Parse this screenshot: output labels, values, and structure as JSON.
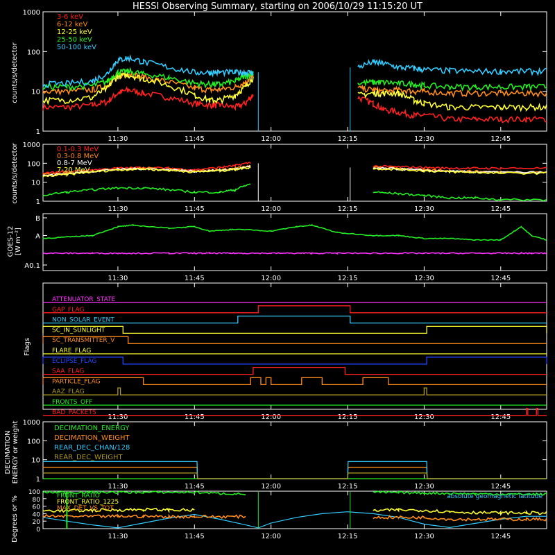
{
  "title": "HESSI Observing Summary, starting on 2006/10/29 11:15:20 UT",
  "colors": {
    "red": "#ff2020",
    "orange": "#ff8c1a",
    "yellow": "#ffff33",
    "green": "#22ee22",
    "cyan": "#33ccff",
    "magenta": "#ff33ff",
    "blue": "#2244ff",
    "olive": "#aa9922",
    "white": "#ffffff",
    "axis": "#ffffff"
  },
  "time_axis": {
    "ticks": [
      "11:30",
      "11:45",
      "12:00",
      "12:15",
      "12:30",
      "12:45"
    ],
    "tick_minutes": [
      690,
      705,
      720,
      735,
      750,
      765
    ],
    "range_minutes": [
      675.33,
      774
    ]
  },
  "panels": {
    "xray": {
      "ylabel": "counts/s/detector",
      "yticks": [
        "1",
        "10",
        "100",
        "1000"
      ],
      "legend": [
        "3-6 keV",
        "6-12 keV",
        "12-25 keV",
        "25-50 keV",
        "50-100 keV"
      ]
    },
    "gamma": {
      "ylabel": "counts/s/detector",
      "yticks": [
        "1",
        "10",
        "100",
        "1000"
      ],
      "legend": [
        "0.1-0.3 MeV",
        "0.3-0.8 MeV",
        "0.8-7 MeV",
        "7-20 MeV"
      ]
    },
    "goes": {
      "ylabel1": "GOES-12",
      "ylabel2": "[W m⁻²]",
      "yticks": [
        "B",
        "A",
        "A0.1"
      ]
    },
    "flags": {
      "ylabel": "Flags",
      "labels": [
        "ATTENUATOR_STATE",
        "GAP_FLAG",
        "NON_SOLAR_EVENT",
        "SC_IN_SUNLIGHT",
        "SC_TRANSMITTER_V",
        "FLARE_FLAG",
        "ECLIPSE_FLAG",
        "SAA_FLAG",
        "PARTICLE_FLAG",
        "AAZ_FLAG",
        "FRONTS_OFF",
        "BAD_PACKETS"
      ]
    },
    "decimation": {
      "ylabel1": "DECIMATION",
      "ylabel2": "ENERGY or weight",
      "yticks": [
        "1",
        "10",
        "100",
        "1000"
      ],
      "legend": [
        "DECIMATION_ENERGY",
        "DECIMATION_WEIGHT",
        "REAR_DEC_CHAN/128",
        "REAR_DEC_WEIGHT"
      ]
    },
    "ratio": {
      "ylabel": "Degrees or %",
      "yticks": [
        "0",
        "20",
        "40",
        "60",
        "80",
        "100"
      ],
      "legend": [
        "FRONT_RATIO",
        "FRONT_RATIO_1225",
        "MAX_DET_VS_TOT"
      ],
      "right_legend": "absolute geomagnetic latitude"
    }
  },
  "chart_data": [
    {
      "type": "line",
      "title": "HESSI Observing Summary, starting on 2006/10/29 11:15:20 UT",
      "ylabel": "counts/s/detector",
      "yscale": "log",
      "ylim": [
        1,
        1000
      ],
      "x": [
        675.3,
        680,
        685,
        688,
        690,
        692,
        695,
        700,
        705,
        708,
        710,
        713,
        715,
        716.5,
        717.5,
        735.5,
        737,
        740,
        742,
        745,
        748,
        750,
        755,
        760,
        765,
        770,
        774
      ],
      "series": [
        {
          "name": "3-6 keV",
          "color": "red",
          "values": [
            4,
            4,
            4.5,
            5.5,
            9,
            11,
            9,
            7,
            5,
            4.5,
            4.5,
            4,
            5,
            8,
            null,
            null,
            7,
            5,
            3.5,
            3,
            2.5,
            2.5,
            2,
            2,
            2,
            2,
            2
          ]
        },
        {
          "name": "6-12 keV",
          "color": "orange",
          "values": [
            10,
            10,
            11,
            14,
            25,
            28,
            23,
            17,
            12,
            11,
            11,
            13,
            17,
            25,
            null,
            null,
            12,
            11,
            10,
            11,
            10,
            10,
            9,
            9,
            9,
            9,
            9
          ]
        },
        {
          "name": "12-25 keV",
          "color": "yellow",
          "values": [
            6,
            6,
            7,
            12,
            24,
            26,
            21,
            14,
            8,
            6,
            6,
            8,
            13,
            22,
            null,
            null,
            8,
            9,
            9,
            9,
            6,
            5,
            4,
            4,
            4,
            4,
            4
          ]
        },
        {
          "name": "25-50 keV",
          "color": "green",
          "values": [
            13,
            13,
            14,
            18,
            30,
            32,
            28,
            22,
            16,
            15,
            15,
            18,
            24,
            30,
            null,
            null,
            16,
            17,
            17,
            16,
            15,
            14,
            13,
            13,
            13,
            13,
            13
          ]
        },
        {
          "name": "50-100 keV",
          "color": "cyan",
          "values": [
            15,
            16,
            18,
            28,
            60,
            70,
            55,
            40,
            30,
            30,
            30,
            30,
            30,
            30,
            null,
            null,
            40,
            55,
            50,
            40,
            38,
            35,
            33,
            32,
            32,
            32,
            32
          ]
        }
      ]
    },
    {
      "type": "line",
      "ylabel": "counts/s/detector",
      "yscale": "log",
      "ylim": [
        1,
        1000
      ],
      "x": [
        675.3,
        680,
        685,
        690,
        695,
        700,
        705,
        710,
        713,
        716,
        717.5,
        735.5,
        740,
        745,
        750,
        755,
        760,
        765,
        774
      ],
      "series": [
        {
          "name": "0.1-0.3 MeV",
          "color": "red",
          "values": [
            30,
            35,
            45,
            55,
            60,
            55,
            45,
            60,
            75,
            110,
            null,
            null,
            70,
            65,
            60,
            55,
            55,
            55,
            55
          ]
        },
        {
          "name": "0.3-0.8 MeV",
          "color": "orange",
          "values": [
            25,
            30,
            40,
            50,
            55,
            48,
            40,
            45,
            55,
            70,
            null,
            null,
            60,
            55,
            45,
            40,
            38,
            35,
            35
          ]
        },
        {
          "name": "0.8-7 MeV",
          "color": "white",
          "values": [
            22,
            28,
            38,
            48,
            52,
            45,
            38,
            42,
            50,
            65,
            null,
            null,
            55,
            50,
            42,
            37,
            35,
            33,
            33
          ]
        },
        {
          "name": "7-20 MeV",
          "color": "yellow",
          "values": [
            20,
            25,
            35,
            45,
            50,
            42,
            35,
            40,
            48,
            60,
            null,
            null,
            52,
            48,
            40,
            35,
            33,
            30,
            30
          ]
        },
        {
          "name": "",
          "color": "green",
          "values": [
            2,
            3,
            4,
            5,
            5,
            4,
            3,
            3,
            4,
            8,
            null,
            null,
            3,
            2.5,
            2,
            1.5,
            1.5,
            1.2,
            1.2
          ]
        }
      ]
    },
    {
      "type": "line",
      "ylabel": "GOES-12 [W m⁻²]",
      "x": [
        675.3,
        680,
        685,
        690,
        693,
        700,
        705,
        708,
        712,
        715,
        720,
        725,
        728,
        733,
        740,
        745,
        750,
        755,
        760,
        765,
        769,
        771,
        774
      ],
      "series": [
        {
          "name": "",
          "color": "green",
          "values": [
            0.9,
            0.95,
            1.0,
            1.3,
            1.35,
            1.25,
            1.3,
            1.15,
            1.2,
            1.2,
            1.15,
            1.3,
            1.35,
            1.1,
            1.0,
            1.0,
            0.9,
            0.9,
            0.85,
            0.85,
            1.3,
            1.0,
            0.85
          ]
        },
        {
          "name": "",
          "color": "magenta",
          "values": [
            0.1,
            0.1,
            0.1,
            0.1,
            0.1,
            0.1,
            0.1,
            0.1,
            0.1,
            0.1,
            0.1,
            0.1,
            0.1,
            0.1,
            0.1,
            0.1,
            0.1,
            0.1,
            0.1,
            0.1,
            0.1,
            0.1,
            0.1
          ]
        }
      ]
    },
    {
      "type": "line",
      "ylabel": "Flags",
      "flag_intervals": [
        {
          "name": "ATTENUATOR_STATE",
          "color": "magenta",
          "on": []
        },
        {
          "name": "GAP_FLAG",
          "color": "red",
          "on": [
            [
              717.5,
              735.5
            ]
          ]
        },
        {
          "name": "NON_SOLAR_EVENT",
          "color": "cyan",
          "on": [
            [
              713.5,
              735.5
            ]
          ]
        },
        {
          "name": "SC_IN_SUNLIGHT",
          "color": "yellow",
          "on": [
            [
              675.3,
              691
            ],
            [
              750.5,
              774
            ]
          ]
        },
        {
          "name": "SC_TRANSMITTER_V",
          "color": "orange",
          "on": [
            [
              675.3,
              692
            ]
          ]
        },
        {
          "name": "FLARE_FLAG",
          "color": "yellow",
          "on": []
        },
        {
          "name": "ECLIPSE_FLAG",
          "color": "blue",
          "on": [
            [
              675.3,
              691
            ],
            [
              750.5,
              774
            ]
          ]
        },
        {
          "name": "SAA_FLAG",
          "color": "red",
          "on": [
            [
              716.5,
              734.5
            ]
          ]
        },
        {
          "name": "PARTICLE_FLAG",
          "color": "orange",
          "on": [
            [
              675.3,
              695
            ],
            [
              716,
              718
            ],
            [
              719,
              720
            ],
            [
              726,
              730
            ],
            [
              738,
              743
            ]
          ]
        },
        {
          "name": "AAZ_FLAG",
          "color": "olive",
          "on": [
            [
              690,
              690.5
            ],
            [
              750,
              750.5
            ]
          ]
        },
        {
          "name": "FRONTS_OFF",
          "color": "green",
          "on": []
        },
        {
          "name": "BAD_PACKETS",
          "color": "red",
          "on": [
            [
              770,
              770.3
            ],
            [
              772,
              772.3
            ]
          ]
        }
      ]
    },
    {
      "type": "line",
      "ylabel": "DECIMATION ENERGY or weight",
      "yscale": "log",
      "ylim": [
        1,
        1000
      ],
      "x": [
        675.3,
        705.5,
        705.6,
        735,
        735.1,
        750.5,
        750.6,
        774
      ],
      "series": [
        {
          "name": "DECIMATION_ENERGY",
          "color": "green",
          "values": [
            1,
            1,
            1,
            1,
            1,
            1,
            1,
            1
          ]
        },
        {
          "name": "DECIMATION_WEIGHT",
          "color": "orange",
          "values": [
            4,
            4,
            1,
            1,
            4,
            4,
            1,
            1
          ]
        },
        {
          "name": "REAR_DEC_CHAN/128",
          "color": "cyan",
          "values": [
            8,
            8,
            1,
            1,
            8,
            8,
            1,
            1
          ]
        },
        {
          "name": "REAR_DEC_WEIGHT",
          "color": "olive",
          "values": [
            2,
            2,
            1,
            1,
            2,
            2,
            1,
            1
          ]
        }
      ]
    },
    {
      "type": "line",
      "ylabel": "Degrees or %",
      "ylim": [
        0,
        100
      ],
      "x": [
        675.3,
        680,
        685,
        690,
        695,
        700,
        705,
        710,
        715,
        717.5,
        720,
        725,
        730,
        735,
        740,
        745,
        750,
        755,
        760,
        765,
        770,
        774
      ],
      "series": [
        {
          "name": "FRONT_RATIO",
          "color": "green",
          "values": [
            97,
            97,
            97,
            97,
            97,
            97,
            97,
            94,
            92,
            null,
            null,
            null,
            null,
            null,
            97,
            96,
            95,
            94,
            93,
            92,
            92,
            92
          ]
        },
        {
          "name": "FRONT_RATIO_1225",
          "color": "yellow",
          "values": [
            48,
            48,
            49,
            50,
            51,
            50,
            49,
            null,
            null,
            null,
            null,
            null,
            null,
            null,
            48,
            50,
            49,
            45,
            43,
            42,
            42,
            42
          ]
        },
        {
          "name": "MAX_DET_VS_TOT",
          "color": "orange",
          "values": [
            33,
            33,
            32,
            33,
            33,
            32,
            32,
            32,
            32,
            null,
            null,
            null,
            null,
            null,
            30,
            30,
            30,
            25,
            25,
            25,
            25,
            25
          ]
        },
        {
          "name": "absolute geomagnetic latitude",
          "color": "cyan",
          "values": [
            30,
            20,
            10,
            2,
            15,
            28,
            38,
            25,
            10,
            2,
            15,
            30,
            40,
            45,
            40,
            30,
            12,
            3,
            14,
            25,
            33,
            33
          ]
        }
      ]
    }
  ]
}
